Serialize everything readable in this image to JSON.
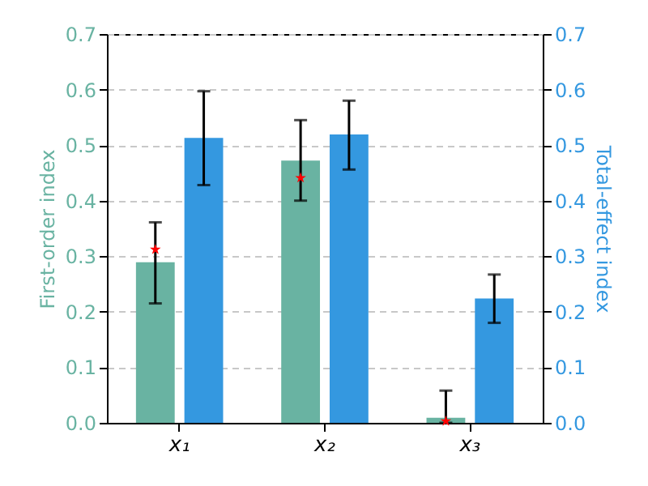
{
  "chart_data": {
    "type": "bar",
    "ylabel": "First-order index",
    "y2label": "Total-effect index",
    "categories": [
      "x₁",
      "x₂",
      "x₃"
    ],
    "series": [
      {
        "color": "#69b3a2",
        "values": [
          0.289,
          0.472,
          0.009
        ],
        "errors": [
          [
            0.215,
            0.361
          ],
          [
            0.4,
            0.545
          ],
          [
            0,
            0.058
          ]
        ]
      },
      {
        "color": "#3498e0",
        "axis": "y2",
        "values": [
          0.513,
          0.519,
          0.224
        ],
        "errors": [
          [
            0.428,
            0.597
          ],
          [
            0.456,
            0.58
          ],
          [
            0.18,
            0.267
          ]
        ]
      },
      {
        "type": "scatter",
        "color": "#ff0000",
        "marker": "star",
        "x": [
          "x₁",
          "x₂",
          "x₃"
        ],
        "values": [
          0.312,
          0.441,
          0.003
        ]
      }
    ],
    "ylim": [
      0,
      0.7
    ],
    "yticks": [
      {
        "value": 0,
        "label": "0.0"
      },
      0.1,
      0.2,
      0.3,
      0.4,
      0.5,
      0.6,
      0.7
    ],
    "y2lim": [
      0,
      0.7
    ],
    "y2ticks": [
      {
        "value": 0,
        "label": "0.0"
      },
      0.1,
      0.2,
      0.3,
      0.4,
      0.5,
      0.6,
      0.7
    ],
    "grid": "y"
  }
}
